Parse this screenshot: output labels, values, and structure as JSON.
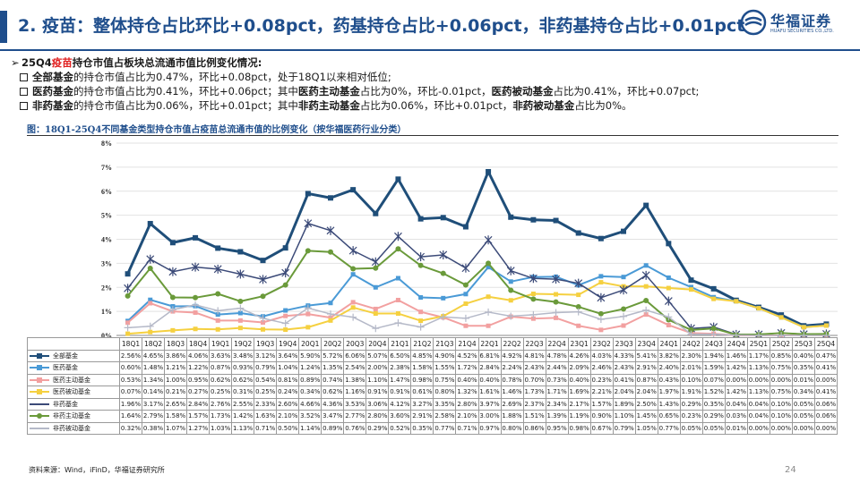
{
  "header": {
    "title": "2. 疫苗：整体持仓占比环比+0.08pct，药基持仓占比+0.06pct，非药基持仓占比+0.01pct",
    "brand_cn": "华福证券",
    "brand_en": "HUAFU SECURITIES CO.,LTD."
  },
  "summary": {
    "head_pre": "25Q4",
    "head_red": "疫苗",
    "head_post": "持仓市值占板块总流通市值比例变化情况:",
    "lines": [
      [
        {
          "t": "全部基金",
          "b": true
        },
        {
          "t": "的持仓市值占比为0.47%，环比+0.08pct，处于18Q1以来相对低位;",
          "b": false
        }
      ],
      [
        {
          "t": "医药基金",
          "b": true
        },
        {
          "t": "的持仓市值占比为0.41%，环比+0.06pct；其中",
          "b": false
        },
        {
          "t": "医药主动基金",
          "b": true
        },
        {
          "t": "占比为0%，环比-0.01pct，",
          "b": false
        },
        {
          "t": "医药被动基金",
          "b": true
        },
        {
          "t": "占比为0.41%，环比+0.07pct;",
          "b": false
        }
      ],
      [
        {
          "t": "非药基金",
          "b": true
        },
        {
          "t": "的持仓市值占比为0.06%，环比+0.01pct；其中",
          "b": false
        },
        {
          "t": "非药主动基金",
          "b": true
        },
        {
          "t": "占比为0.06%，环比+0.01pct，",
          "b": false
        },
        {
          "t": "非药被动基金",
          "b": true
        },
        {
          "t": "占比为0%。",
          "b": false
        }
      ]
    ]
  },
  "figure_title": "图：18Q1-25Q4不同基金类型持仓市值占疫苗总流通市值的比例变化（按华福医药行业分类）",
  "footer": {
    "source": "资料来源：Wind，iFinD，华福证券研究所",
    "page": "24"
  },
  "chart_data": {
    "type": "line",
    "title": "18Q1-25Q4不同基金类型持仓市值占疫苗总流通市值的比例变化",
    "ylabel": "",
    "xlabel": "",
    "ylim": [
      0,
      8
    ],
    "yticks": [
      "0%",
      "1%",
      "2%",
      "3%",
      "4%",
      "5%",
      "6%",
      "7%",
      "8%"
    ],
    "grid": true,
    "categories": [
      "18Q1",
      "18Q2",
      "18Q3",
      "18Q4",
      "19Q1",
      "19Q2",
      "19Q3",
      "19Q4",
      "20Q1",
      "20Q2",
      "20Q3",
      "20Q4",
      "21Q1",
      "21Q2",
      "21Q3",
      "21Q4",
      "22Q1",
      "22Q2",
      "22Q3",
      "22Q4",
      "23Q1",
      "23Q2",
      "23Q3",
      "23Q4",
      "24Q1",
      "24Q2",
      "24Q3",
      "24Q4",
      "25Q1",
      "25Q2",
      "25Q3",
      "25Q4"
    ],
    "series": [
      {
        "name": "全部基金",
        "color": "#1f4e79",
        "marker": "square",
        "width": 3,
        "values": [
          2.56,
          4.65,
          3.86,
          4.06,
          3.63,
          3.48,
          3.12,
          3.64,
          5.9,
          5.72,
          6.06,
          5.07,
          6.5,
          4.85,
          4.9,
          4.52,
          6.81,
          4.92,
          4.81,
          4.78,
          4.26,
          4.03,
          4.33,
          5.41,
          3.82,
          2.3,
          1.94,
          1.46,
          1.17,
          0.85,
          0.4,
          0.47
        ],
        "labels": [
          "2.56%",
          "4.65%",
          "3.86%",
          "4.06%",
          "3.63%",
          "3.48%",
          "3.12%",
          "3.64%",
          "5.90%",
          "5.72%",
          "6.06%",
          "5.07%",
          "6.50%",
          "4.85%",
          "4.90%",
          "4.52%",
          "6.81%",
          "4.92%",
          "4.81%",
          "4.78%",
          "4.26%",
          "4.03%",
          "4.33%",
          "5.41%",
          "3.82%",
          "2.30%",
          "1.94%",
          "1.46%",
          "1.17%",
          "0.85%",
          "0.40%",
          "0.47%"
        ]
      },
      {
        "name": "医药基金",
        "color": "#4a9ad6",
        "marker": "square",
        "width": 2,
        "values": [
          0.6,
          1.48,
          1.21,
          1.22,
          0.87,
          0.93,
          0.79,
          1.04,
          1.24,
          1.35,
          2.54,
          2.0,
          2.38,
          1.58,
          1.55,
          1.72,
          2.84,
          2.24,
          2.43,
          2.44,
          2.09,
          2.46,
          2.43,
          2.91,
          2.4,
          2.01,
          1.59,
          1.42,
          1.13,
          0.75,
          0.35,
          0.41
        ],
        "labels": [
          "0.60%",
          "1.48%",
          "1.21%",
          "1.22%",
          "0.87%",
          "0.93%",
          "0.79%",
          "1.04%",
          "1.24%",
          "1.35%",
          "2.54%",
          "2.00%",
          "2.38%",
          "1.58%",
          "1.55%",
          "1.72%",
          "2.84%",
          "2.24%",
          "2.43%",
          "2.44%",
          "2.09%",
          "2.46%",
          "2.43%",
          "2.91%",
          "2.40%",
          "2.01%",
          "1.59%",
          "1.42%",
          "1.13%",
          "0.75%",
          "0.35%",
          "0.41%"
        ]
      },
      {
        "name": "医药主动基金",
        "color": "#f2a0a0",
        "marker": "square",
        "width": 2,
        "values": [
          0.53,
          1.34,
          1.0,
          0.95,
          0.62,
          0.62,
          0.54,
          0.81,
          0.89,
          0.74,
          1.38,
          1.1,
          1.47,
          0.98,
          0.75,
          0.4,
          0.4,
          0.78,
          0.7,
          0.73,
          0.4,
          0.23,
          0.41,
          0.87,
          0.43,
          0.1,
          0.07,
          0.0,
          0.0,
          0.0,
          0.01,
          0.0
        ],
        "labels": [
          "0.53%",
          "1.34%",
          "1.00%",
          "0.95%",
          "0.62%",
          "0.62%",
          "0.54%",
          "0.81%",
          "0.89%",
          "0.74%",
          "1.38%",
          "1.10%",
          "1.47%",
          "0.98%",
          "0.75%",
          "0.40%",
          "0.40%",
          "0.78%",
          "0.70%",
          "0.73%",
          "0.40%",
          "0.23%",
          "0.41%",
          "0.87%",
          "0.43%",
          "0.10%",
          "0.07%",
          "0.00%",
          "0.00%",
          "0.00%",
          "0.01%",
          "0.00%"
        ]
      },
      {
        "name": "医药被动基金",
        "color": "#f5d040",
        "marker": "square",
        "width": 2,
        "values": [
          0.07,
          0.14,
          0.21,
          0.27,
          0.25,
          0.31,
          0.25,
          0.24,
          0.34,
          0.62,
          1.16,
          0.91,
          0.91,
          0.61,
          0.8,
          1.32,
          1.61,
          1.46,
          1.73,
          1.71,
          1.69,
          2.21,
          2.04,
          2.04,
          1.97,
          1.91,
          1.52,
          1.42,
          1.13,
          0.75,
          0.34,
          0.41
        ],
        "labels": [
          "0.07%",
          "0.14%",
          "0.21%",
          "0.27%",
          "0.25%",
          "0.31%",
          "0.25%",
          "0.24%",
          "0.34%",
          "0.62%",
          "1.16%",
          "0.91%",
          "0.91%",
          "0.61%",
          "0.80%",
          "1.32%",
          "1.61%",
          "1.46%",
          "1.73%",
          "1.71%",
          "1.69%",
          "2.21%",
          "2.04%",
          "2.04%",
          "1.97%",
          "1.91%",
          "1.52%",
          "1.42%",
          "1.13%",
          "0.75%",
          "0.34%",
          "0.41%"
        ]
      },
      {
        "name": "非药基金",
        "color": "#3b4a78",
        "marker": "star",
        "width": 1.5,
        "values": [
          1.96,
          3.17,
          2.65,
          2.84,
          2.76,
          2.55,
          2.33,
          2.6,
          4.66,
          4.36,
          3.53,
          3.06,
          4.12,
          3.27,
          3.35,
          2.8,
          3.97,
          2.69,
          2.37,
          2.34,
          2.17,
          1.57,
          1.89,
          2.5,
          1.43,
          0.29,
          0.35,
          0.04,
          0.04,
          0.1,
          0.05,
          0.06
        ],
        "labels": [
          "1.96%",
          "3.17%",
          "2.65%",
          "2.84%",
          "2.76%",
          "2.55%",
          "2.33%",
          "2.60%",
          "4.66%",
          "4.36%",
          "3.53%",
          "3.06%",
          "4.12%",
          "3.27%",
          "3.35%",
          "2.80%",
          "3.97%",
          "2.69%",
          "2.37%",
          "2.34%",
          "2.17%",
          "1.57%",
          "1.89%",
          "2.50%",
          "1.43%",
          "0.29%",
          "0.35%",
          "0.04%",
          "0.04%",
          "0.10%",
          "0.05%",
          "0.06%"
        ]
      },
      {
        "name": "非药主动基金",
        "color": "#6a9a3a",
        "marker": "circle",
        "width": 2,
        "values": [
          1.64,
          2.79,
          1.58,
          1.57,
          1.73,
          1.42,
          1.63,
          2.1,
          3.52,
          3.47,
          2.77,
          2.8,
          3.6,
          2.91,
          2.58,
          2.1,
          3.0,
          1.88,
          1.51,
          1.39,
          1.19,
          0.9,
          1.1,
          1.45,
          0.65,
          0.23,
          0.29,
          0.03,
          0.04,
          0.1,
          0.05,
          0.06
        ],
        "labels": [
          "1.64%",
          "2.79%",
          "1.58%",
          "1.57%",
          "1.73%",
          "1.42%",
          "1.63%",
          "2.10%",
          "3.52%",
          "3.47%",
          "2.77%",
          "2.80%",
          "3.60%",
          "2.91%",
          "2.58%",
          "2.10%",
          "3.00%",
          "1.88%",
          "1.51%",
          "1.39%",
          "1.19%",
          "0.90%",
          "1.10%",
          "1.45%",
          "0.65%",
          "0.23%",
          "0.29%",
          "0.03%",
          "0.04%",
          "0.10%",
          "0.05%",
          "0.06%"
        ]
      },
      {
        "name": "非药被动基金",
        "color": "#b5b9c8",
        "marker": "plus",
        "width": 1.5,
        "values": [
          0.32,
          0.38,
          1.07,
          1.27,
          1.03,
          1.13,
          0.71,
          0.5,
          1.14,
          0.89,
          0.76,
          0.29,
          0.52,
          0.35,
          0.77,
          0.71,
          0.97,
          0.8,
          0.86,
          0.95,
          0.98,
          0.67,
          0.79,
          1.05,
          0.77,
          0.05,
          0.05,
          0.01,
          0.0,
          0.0,
          0.0,
          0.0
        ],
        "labels": [
          "0.32%",
          "0.38%",
          "1.07%",
          "1.27%",
          "1.03%",
          "1.13%",
          "0.71%",
          "0.50%",
          "1.14%",
          "0.89%",
          "0.76%",
          "0.29%",
          "0.52%",
          "0.35%",
          "0.77%",
          "0.71%",
          "0.97%",
          "0.80%",
          "0.86%",
          "0.95%",
          "0.98%",
          "0.67%",
          "0.79%",
          "1.05%",
          "0.77%",
          "0.05%",
          "0.05%",
          "0.01%",
          "0.00%",
          "0.00%",
          "0.00%",
          "0.00%"
        ]
      }
    ]
  }
}
